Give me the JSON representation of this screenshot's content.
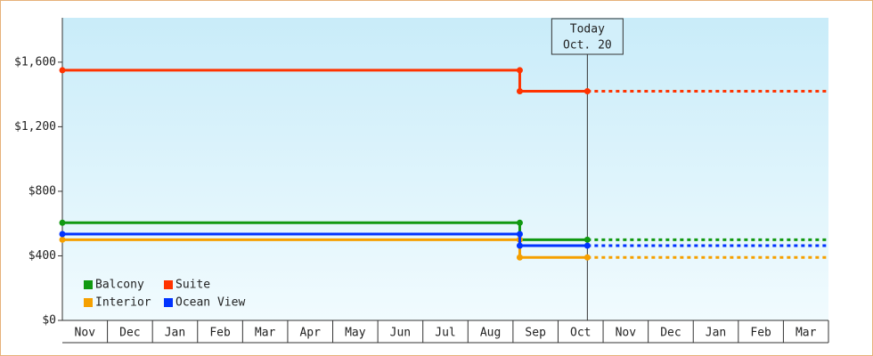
{
  "chart_data": {
    "type": "line",
    "x": [
      0,
      10.15,
      10.15,
      11.65
    ],
    "xlim": [
      0,
      17
    ],
    "xticks": [
      {
        "value": 0.5,
        "label": "Nov"
      },
      {
        "value": 1.5,
        "label": "Dec"
      },
      {
        "value": 2.5,
        "label": "Jan"
      },
      {
        "value": 3.5,
        "label": "Feb"
      },
      {
        "value": 4.5,
        "label": "Mar"
      },
      {
        "value": 5.5,
        "label": "Apr"
      },
      {
        "value": 6.5,
        "label": "May"
      },
      {
        "value": 7.5,
        "label": "Jun"
      },
      {
        "value": 8.5,
        "label": "Jul"
      },
      {
        "value": 9.5,
        "label": "Aug"
      },
      {
        "value": 10.5,
        "label": "Sep"
      },
      {
        "value": 11.5,
        "label": "Oct"
      },
      {
        "value": 12.5,
        "label": "Nov"
      },
      {
        "value": 13.5,
        "label": "Dec"
      },
      {
        "value": 14.5,
        "label": "Jan"
      },
      {
        "value": 15.5,
        "label": "Feb"
      },
      {
        "value": 16.5,
        "label": "Mar"
      }
    ],
    "ylim": [
      0,
      1875
    ],
    "yticks": [
      {
        "value": 0,
        "label": "$0"
      },
      {
        "value": 400,
        "label": "$400"
      },
      {
        "value": 800,
        "label": "$800"
      },
      {
        "value": 1200,
        "label": "$1,200"
      },
      {
        "value": 1600,
        "label": "$1,600"
      }
    ],
    "series": [
      {
        "name": "Balcony",
        "color": "#119911",
        "values": [
          605,
          605,
          500,
          500
        ]
      },
      {
        "name": "Suite",
        "color": "#ff3300",
        "values": [
          1550,
          1550,
          1420,
          1420
        ]
      },
      {
        "name": "Interior",
        "color": "#f5a000",
        "values": [
          500,
          500,
          390,
          390
        ]
      },
      {
        "name": "Ocean View",
        "color": "#0033ff",
        "values": [
          535,
          535,
          463,
          463
        ]
      }
    ],
    "annotation": {
      "x": 11.65,
      "lines": [
        "Today",
        "Oct. 20"
      ]
    },
    "legend": "lower left",
    "grid": false
  }
}
